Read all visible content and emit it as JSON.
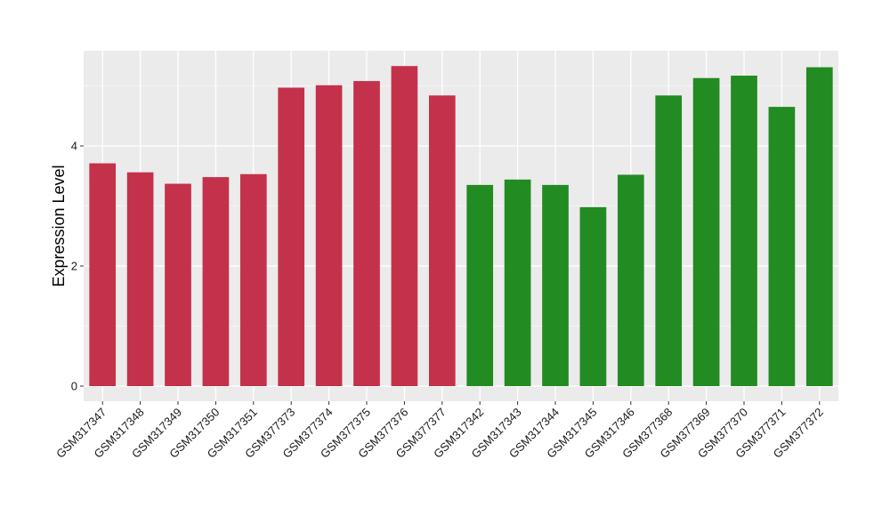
{
  "chart_data": {
    "type": "bar",
    "title": "",
    "xlabel": "",
    "ylabel": "Expression Level",
    "ylim": [
      -0.24,
      5.6
    ],
    "yticks": [
      0,
      2,
      4
    ],
    "grid": true,
    "legend": "none",
    "categories": [
      "GSM317347",
      "GSM317348",
      "GSM317349",
      "GSM317350",
      "GSM317351",
      "GSM377373",
      "GSM377374",
      "GSM377375",
      "GSM377376",
      "GSM377377",
      "GSM317342",
      "GSM317343",
      "GSM317344",
      "GSM317345",
      "GSM317346",
      "GSM377368",
      "GSM377369",
      "GSM377370",
      "GSM377371",
      "GSM377372"
    ],
    "values": [
      3.71,
      3.56,
      3.37,
      3.48,
      3.53,
      4.97,
      5.01,
      5.08,
      5.33,
      4.84,
      3.35,
      3.44,
      3.35,
      2.98,
      3.52,
      4.84,
      5.13,
      5.17,
      4.65,
      5.31
    ],
    "bar_colors": [
      "#c4314b",
      "#c4314b",
      "#c4314b",
      "#c4314b",
      "#c4314b",
      "#c4314b",
      "#c4314b",
      "#c4314b",
      "#c4314b",
      "#c4314b",
      "#228b22",
      "#228b22",
      "#228b22",
      "#228b22",
      "#228b22",
      "#228b22",
      "#228b22",
      "#228b22",
      "#228b22",
      "#228b22"
    ],
    "panel_background": "#ebebeb",
    "gridline_color": "#ffffff"
  }
}
